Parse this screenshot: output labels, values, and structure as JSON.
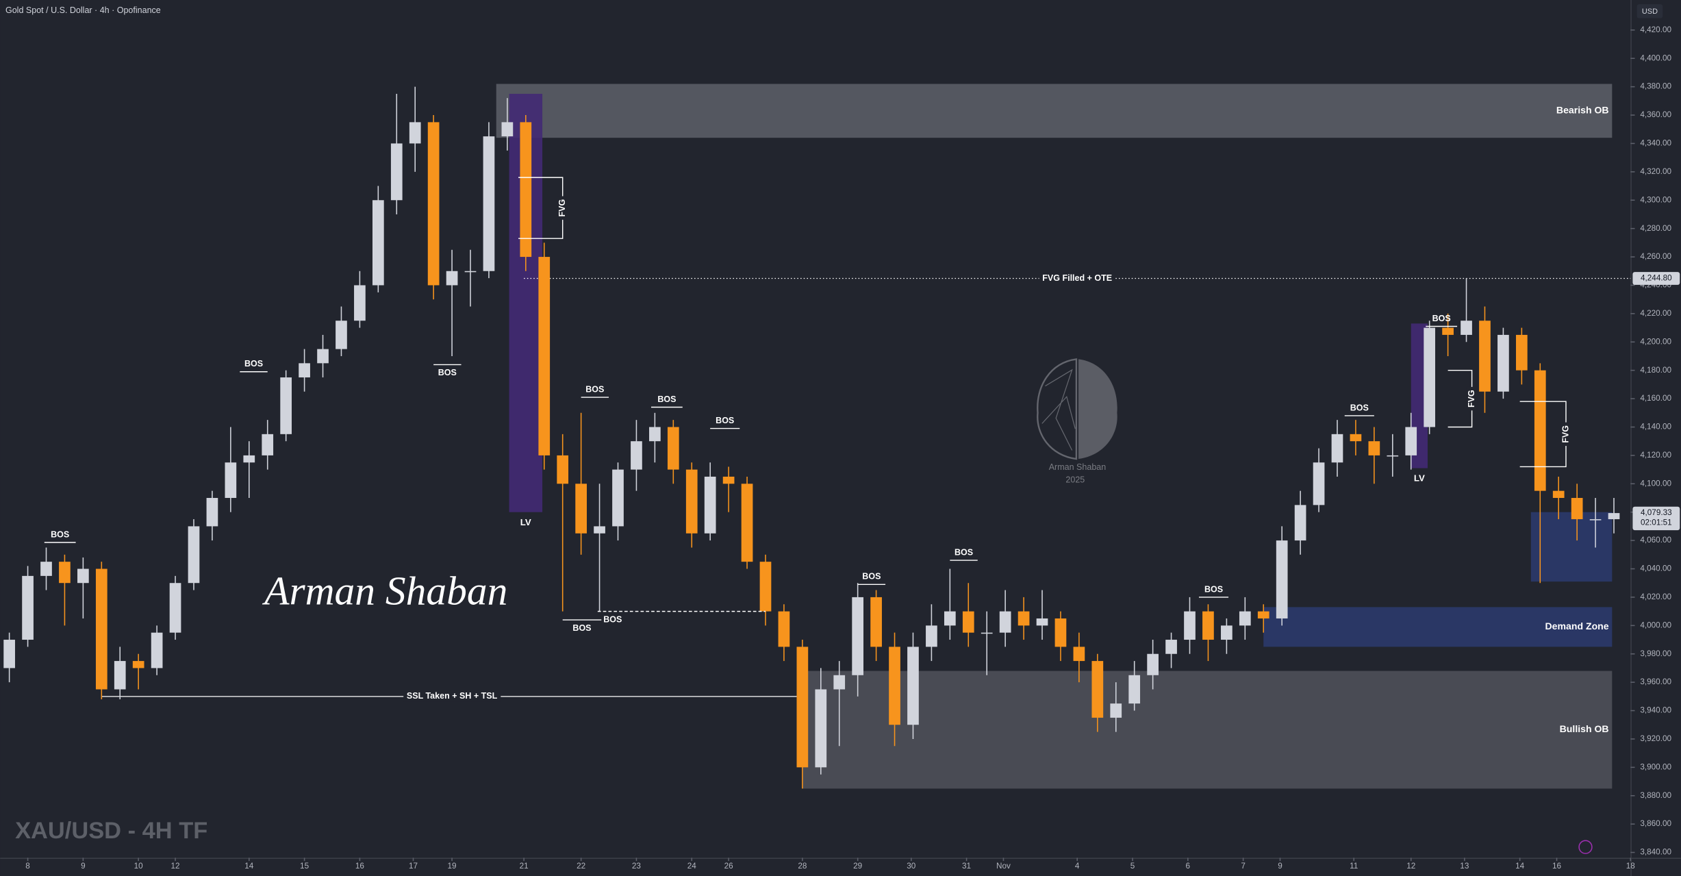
{
  "chart_data": {
    "type": "candlestick",
    "title": "Gold Spot / U.S. Dollar · 4h · Opofinance",
    "currency": "USD",
    "caption": "XAU/USD - 4H TF",
    "watermark": "Arman Shaban",
    "logo_text": [
      "Arman Shaban",
      "2025"
    ],
    "up_color": "#d1d4dc",
    "down_color": "#f7941d",
    "xlim": [
      0,
      88.4
    ],
    "ylim": [
      3840,
      4420
    ],
    "xticks": [
      {
        "value": 1.5,
        "label": "8"
      },
      {
        "value": 4.5,
        "label": "9"
      },
      {
        "value": 7.5,
        "label": "10"
      },
      {
        "value": 9.5,
        "label": "12"
      },
      {
        "value": 13.5,
        "label": "14"
      },
      {
        "value": 16.5,
        "label": "15"
      },
      {
        "value": 19.5,
        "label": "16"
      },
      {
        "value": 22.4,
        "label": "17"
      },
      {
        "value": 24.5,
        "label": "19"
      },
      {
        "value": 28.4,
        "label": "21"
      },
      {
        "value": 31.5,
        "label": "22"
      },
      {
        "value": 34.5,
        "label": "23"
      },
      {
        "value": 37.5,
        "label": "24"
      },
      {
        "value": 39.5,
        "label": "26"
      },
      {
        "value": 43.5,
        "label": "28"
      },
      {
        "value": 46.5,
        "label": "29"
      },
      {
        "value": 49.4,
        "label": "30"
      },
      {
        "value": 52.4,
        "label": "31"
      },
      {
        "value": 54.4,
        "label": "Nov"
      },
      {
        "value": 58.4,
        "label": "4"
      },
      {
        "value": 61.4,
        "label": "5"
      },
      {
        "value": 64.4,
        "label": "6"
      },
      {
        "value": 67.4,
        "label": "7"
      },
      {
        "value": 69.4,
        "label": "9"
      },
      {
        "value": 73.4,
        "label": "11"
      },
      {
        "value": 76.5,
        "label": "12"
      },
      {
        "value": 79.4,
        "label": "13"
      },
      {
        "value": 82.4,
        "label": "14"
      },
      {
        "value": 84.4,
        "label": "16"
      },
      {
        "value": 88.4,
        "label": "18"
      }
    ],
    "yticks": [
      {
        "value": 3840,
        "label": "3,840.00"
      },
      {
        "value": 3860,
        "label": "3,860.00"
      },
      {
        "value": 3880,
        "label": "3,880.00"
      },
      {
        "value": 3900,
        "label": "3,900.00"
      },
      {
        "value": 3920,
        "label": "3,920.00"
      },
      {
        "value": 3940,
        "label": "3,940.00"
      },
      {
        "value": 3960,
        "label": "3,960.00"
      },
      {
        "value": 3980,
        "label": "3,980.00"
      },
      {
        "value": 4000,
        "label": "4,000.00"
      },
      {
        "value": 4020,
        "label": "4,020.00"
      },
      {
        "value": 4040,
        "label": "4,040.00"
      },
      {
        "value": 4060,
        "label": "4,060.00"
      },
      {
        "value": 4080,
        "label": "4,080.00"
      },
      {
        "value": 4100,
        "label": "4,100.00"
      },
      {
        "value": 4120,
        "label": "4,120.00"
      },
      {
        "value": 4140,
        "label": "4,140.00"
      },
      {
        "value": 4160,
        "label": "4,160.00"
      },
      {
        "value": 4180,
        "label": "4,180.00"
      },
      {
        "value": 4200,
        "label": "4,200.00"
      },
      {
        "value": 4220,
        "label": "4,220.00"
      },
      {
        "value": 4240,
        "label": "4,240.00"
      },
      {
        "value": 4260,
        "label": "4,260.00"
      },
      {
        "value": 4280,
        "label": "4,280.00"
      },
      {
        "value": 4300,
        "label": "4,300.00"
      },
      {
        "value": 4320,
        "label": "4,320.00"
      },
      {
        "value": 4340,
        "label": "4,340.00"
      },
      {
        "value": 4360,
        "label": "4,360.00"
      },
      {
        "value": 4380,
        "label": "4,380.00"
      },
      {
        "value": 4400,
        "label": "4,400.00"
      },
      {
        "value": 4420,
        "label": "4,420.00"
      }
    ],
    "candles": [
      [
        3970,
        3995,
        3960,
        3990
      ],
      [
        3990,
        4042,
        3985,
        4035
      ],
      [
        4035,
        4055,
        4025,
        4045
      ],
      [
        4045,
        4050,
        4000,
        4030
      ],
      [
        4030,
        4048,
        4005,
        4040
      ],
      [
        4040,
        4045,
        3948,
        3955
      ],
      [
        3955,
        3985,
        3948,
        3975
      ],
      [
        3975,
        3980,
        3955,
        3970
      ],
      [
        3970,
        4000,
        3965,
        3995
      ],
      [
        3995,
        4035,
        3990,
        4030
      ],
      [
        4030,
        4075,
        4025,
        4070
      ],
      [
        4070,
        4095,
        4060,
        4090
      ],
      [
        4090,
        4140,
        4080,
        4115
      ],
      [
        4115,
        4130,
        4090,
        4120
      ],
      [
        4120,
        4145,
        4110,
        4135
      ],
      [
        4135,
        4180,
        4130,
        4175
      ],
      [
        4175,
        4195,
        4165,
        4185
      ],
      [
        4185,
        4205,
        4175,
        4195
      ],
      [
        4195,
        4225,
        4190,
        4215
      ],
      [
        4215,
        4250,
        4210,
        4240
      ],
      [
        4240,
        4310,
        4235,
        4300
      ],
      [
        4300,
        4375,
        4290,
        4340
      ],
      [
        4340,
        4380,
        4320,
        4355
      ],
      [
        4355,
        4360,
        4230,
        4240
      ],
      [
        4240,
        4265,
        4190,
        4250
      ],
      [
        4250,
        4265,
        4225,
        4250
      ],
      [
        4250,
        4355,
        4245,
        4345
      ],
      [
        4345,
        4372,
        4335,
        4355
      ],
      [
        4355,
        4360,
        4250,
        4260
      ],
      [
        4260,
        4270,
        4110,
        4120
      ],
      [
        4120,
        4135,
        4010,
        4100
      ],
      [
        4100,
        4150,
        4050,
        4065
      ],
      [
        4065,
        4100,
        4010,
        4070
      ],
      [
        4070,
        4115,
        4060,
        4110
      ],
      [
        4110,
        4145,
        4095,
        4130
      ],
      [
        4130,
        4150,
        4115,
        4140
      ],
      [
        4140,
        4145,
        4100,
        4110
      ],
      [
        4110,
        4115,
        4055,
        4065
      ],
      [
        4065,
        4115,
        4060,
        4105
      ],
      [
        4105,
        4112,
        4080,
        4100
      ],
      [
        4100,
        4105,
        4040,
        4045
      ],
      [
        4045,
        4050,
        4000,
        4010
      ],
      [
        4010,
        4015,
        3975,
        3985
      ],
      [
        3985,
        3990,
        3885,
        3900
      ],
      [
        3900,
        3970,
        3895,
        3955
      ],
      [
        3955,
        3975,
        3915,
        3965
      ],
      [
        3965,
        4030,
        3950,
        4020
      ],
      [
        4020,
        4025,
        3975,
        3985
      ],
      [
        3985,
        3995,
        3915,
        3930
      ],
      [
        3930,
        3995,
        3920,
        3985
      ],
      [
        3985,
        4015,
        3975,
        4000
      ],
      [
        4000,
        4040,
        3990,
        4010
      ],
      [
        4010,
        4030,
        3985,
        3995
      ],
      [
        3995,
        4010,
        3965,
        3995
      ],
      [
        3995,
        4025,
        3985,
        4010
      ],
      [
        4010,
        4020,
        3990,
        4000
      ],
      [
        4000,
        4025,
        3990,
        4005
      ],
      [
        4005,
        4010,
        3975,
        3985
      ],
      [
        3985,
        3995,
        3960,
        3975
      ],
      [
        3975,
        3980,
        3925,
        3935
      ],
      [
        3935,
        3960,
        3925,
        3945
      ],
      [
        3945,
        3975,
        3940,
        3965
      ],
      [
        3965,
        3990,
        3955,
        3980
      ],
      [
        3980,
        3995,
        3970,
        3990
      ],
      [
        3990,
        4020,
        3980,
        4010
      ],
      [
        4010,
        4015,
        3975,
        3990
      ],
      [
        3990,
        4005,
        3980,
        4000
      ],
      [
        4000,
        4020,
        3990,
        4010
      ],
      [
        4010,
        4015,
        3995,
        4005
      ],
      [
        4005,
        4070,
        4000,
        4060
      ],
      [
        4060,
        4095,
        4050,
        4085
      ],
      [
        4085,
        4125,
        4080,
        4115
      ],
      [
        4115,
        4145,
        4105,
        4135
      ],
      [
        4135,
        4145,
        4120,
        4130
      ],
      [
        4130,
        4140,
        4100,
        4120
      ],
      [
        4120,
        4135,
        4105,
        4120
      ],
      [
        4120,
        4150,
        4110,
        4140
      ],
      [
        4140,
        4215,
        4135,
        4210
      ],
      [
        4210,
        4220,
        4190,
        4205
      ],
      [
        4205,
        4245,
        4200,
        4215
      ],
      [
        4215,
        4225,
        4150,
        4165
      ],
      [
        4165,
        4210,
        4160,
        4205
      ],
      [
        4205,
        4210,
        4170,
        4180
      ],
      [
        4180,
        4185,
        4030,
        4095
      ],
      [
        4095,
        4105,
        4075,
        4090
      ],
      [
        4090,
        4100,
        4060,
        4075
      ],
      [
        4075,
        4090,
        4055,
        4075
      ],
      [
        4075,
        4090,
        4065,
        4079.33
      ]
    ],
    "zones": [
      {
        "label": "Bearish OB",
        "x": [
          26.9,
          87.4
        ],
        "y": [
          4344,
          4382
        ],
        "color": "#5a5d66"
      },
      {
        "label": "Bullish OB",
        "x": [
          43.5,
          87.4
        ],
        "y": [
          3885,
          3968
        ],
        "color": "#4e5059"
      },
      {
        "label": "Demand Zone",
        "x": [
          68.5,
          87.4
        ],
        "y": [
          3985,
          4013
        ],
        "color": "#2b3a6b"
      },
      {
        "x": [
          83.0,
          87.4
        ],
        "y": [
          4031,
          4080
        ],
        "color": "#2b3a6b"
      },
      {
        "label": "LV",
        "x": [
          27.6,
          29.4
        ],
        "y": [
          4080,
          4375
        ],
        "color": "#432a74",
        "label_pos": "below"
      },
      {
        "label": "LV",
        "x": [
          76.5,
          77.4
        ],
        "y": [
          4111,
          4213
        ],
        "color": "#432a74",
        "label_pos": "below"
      }
    ],
    "bos": [
      {
        "label": "BOS",
        "x": [
          2.4,
          4.1
        ],
        "y": 4058.6
      },
      {
        "label": "BOS",
        "x": [
          13.0,
          14.5
        ],
        "y": 4179
      },
      {
        "label": "BOS",
        "x": [
          23.5,
          25.0
        ],
        "y": 4184,
        "pos": "below"
      },
      {
        "label": "BOS",
        "x": [
          31.5,
          33.0
        ],
        "y": 4161
      },
      {
        "label": "BOS",
        "x": [
          35.3,
          37.0
        ],
        "y": 4154
      },
      {
        "label": "BOS",
        "x": [
          38.5,
          40.1
        ],
        "y": 4139
      },
      {
        "label": "BOS",
        "x": [
          30.5,
          32.6
        ],
        "y": 4004,
        "pos": "below"
      },
      {
        "label": "BOS",
        "x": [
          32.4,
          41.5
        ],
        "y": 4010,
        "pos": "below",
        "dashed": true
      },
      {
        "label": "BOS",
        "x": [
          46.5,
          48.0
        ],
        "y": 4029
      },
      {
        "label": "BOS",
        "x": [
          51.5,
          53.0
        ],
        "y": 4046
      },
      {
        "label": "BOS",
        "x": [
          65.0,
          66.6
        ],
        "y": 4020
      },
      {
        "label": "BOS",
        "x": [
          72.9,
          74.5
        ],
        "y": 4148
      },
      {
        "label": "BOS",
        "x": [
          77.3,
          79.0
        ],
        "y": 4211
      }
    ],
    "fvg": [
      {
        "label": "FVG",
        "x": [
          28.1,
          30.5
        ],
        "y": [
          4316,
          4273
        ]
      },
      {
        "label": "FVG",
        "x": [
          78.5,
          79.8
        ],
        "y": [
          4180,
          4140
        ]
      },
      {
        "label": "FVG",
        "x": [
          82.4,
          84.9
        ],
        "y": [
          4158,
          4112
        ]
      }
    ],
    "levels": [
      {
        "label": "FVG Filled + OTE",
        "x": [
          28.4,
          88.4
        ],
        "price": {
          "value": 4244.8,
          "label": "4,244.80"
        },
        "style": "dotted"
      },
      {
        "label": "SSL Taken + SH + TSL",
        "x": [
          5.5,
          43.5
        ],
        "price": {
          "value": 3950
        },
        "style": "solid"
      }
    ],
    "last_price": {
      "value": 4079.33,
      "label": "4,079.33"
    },
    "countdown": "02:01:51"
  }
}
